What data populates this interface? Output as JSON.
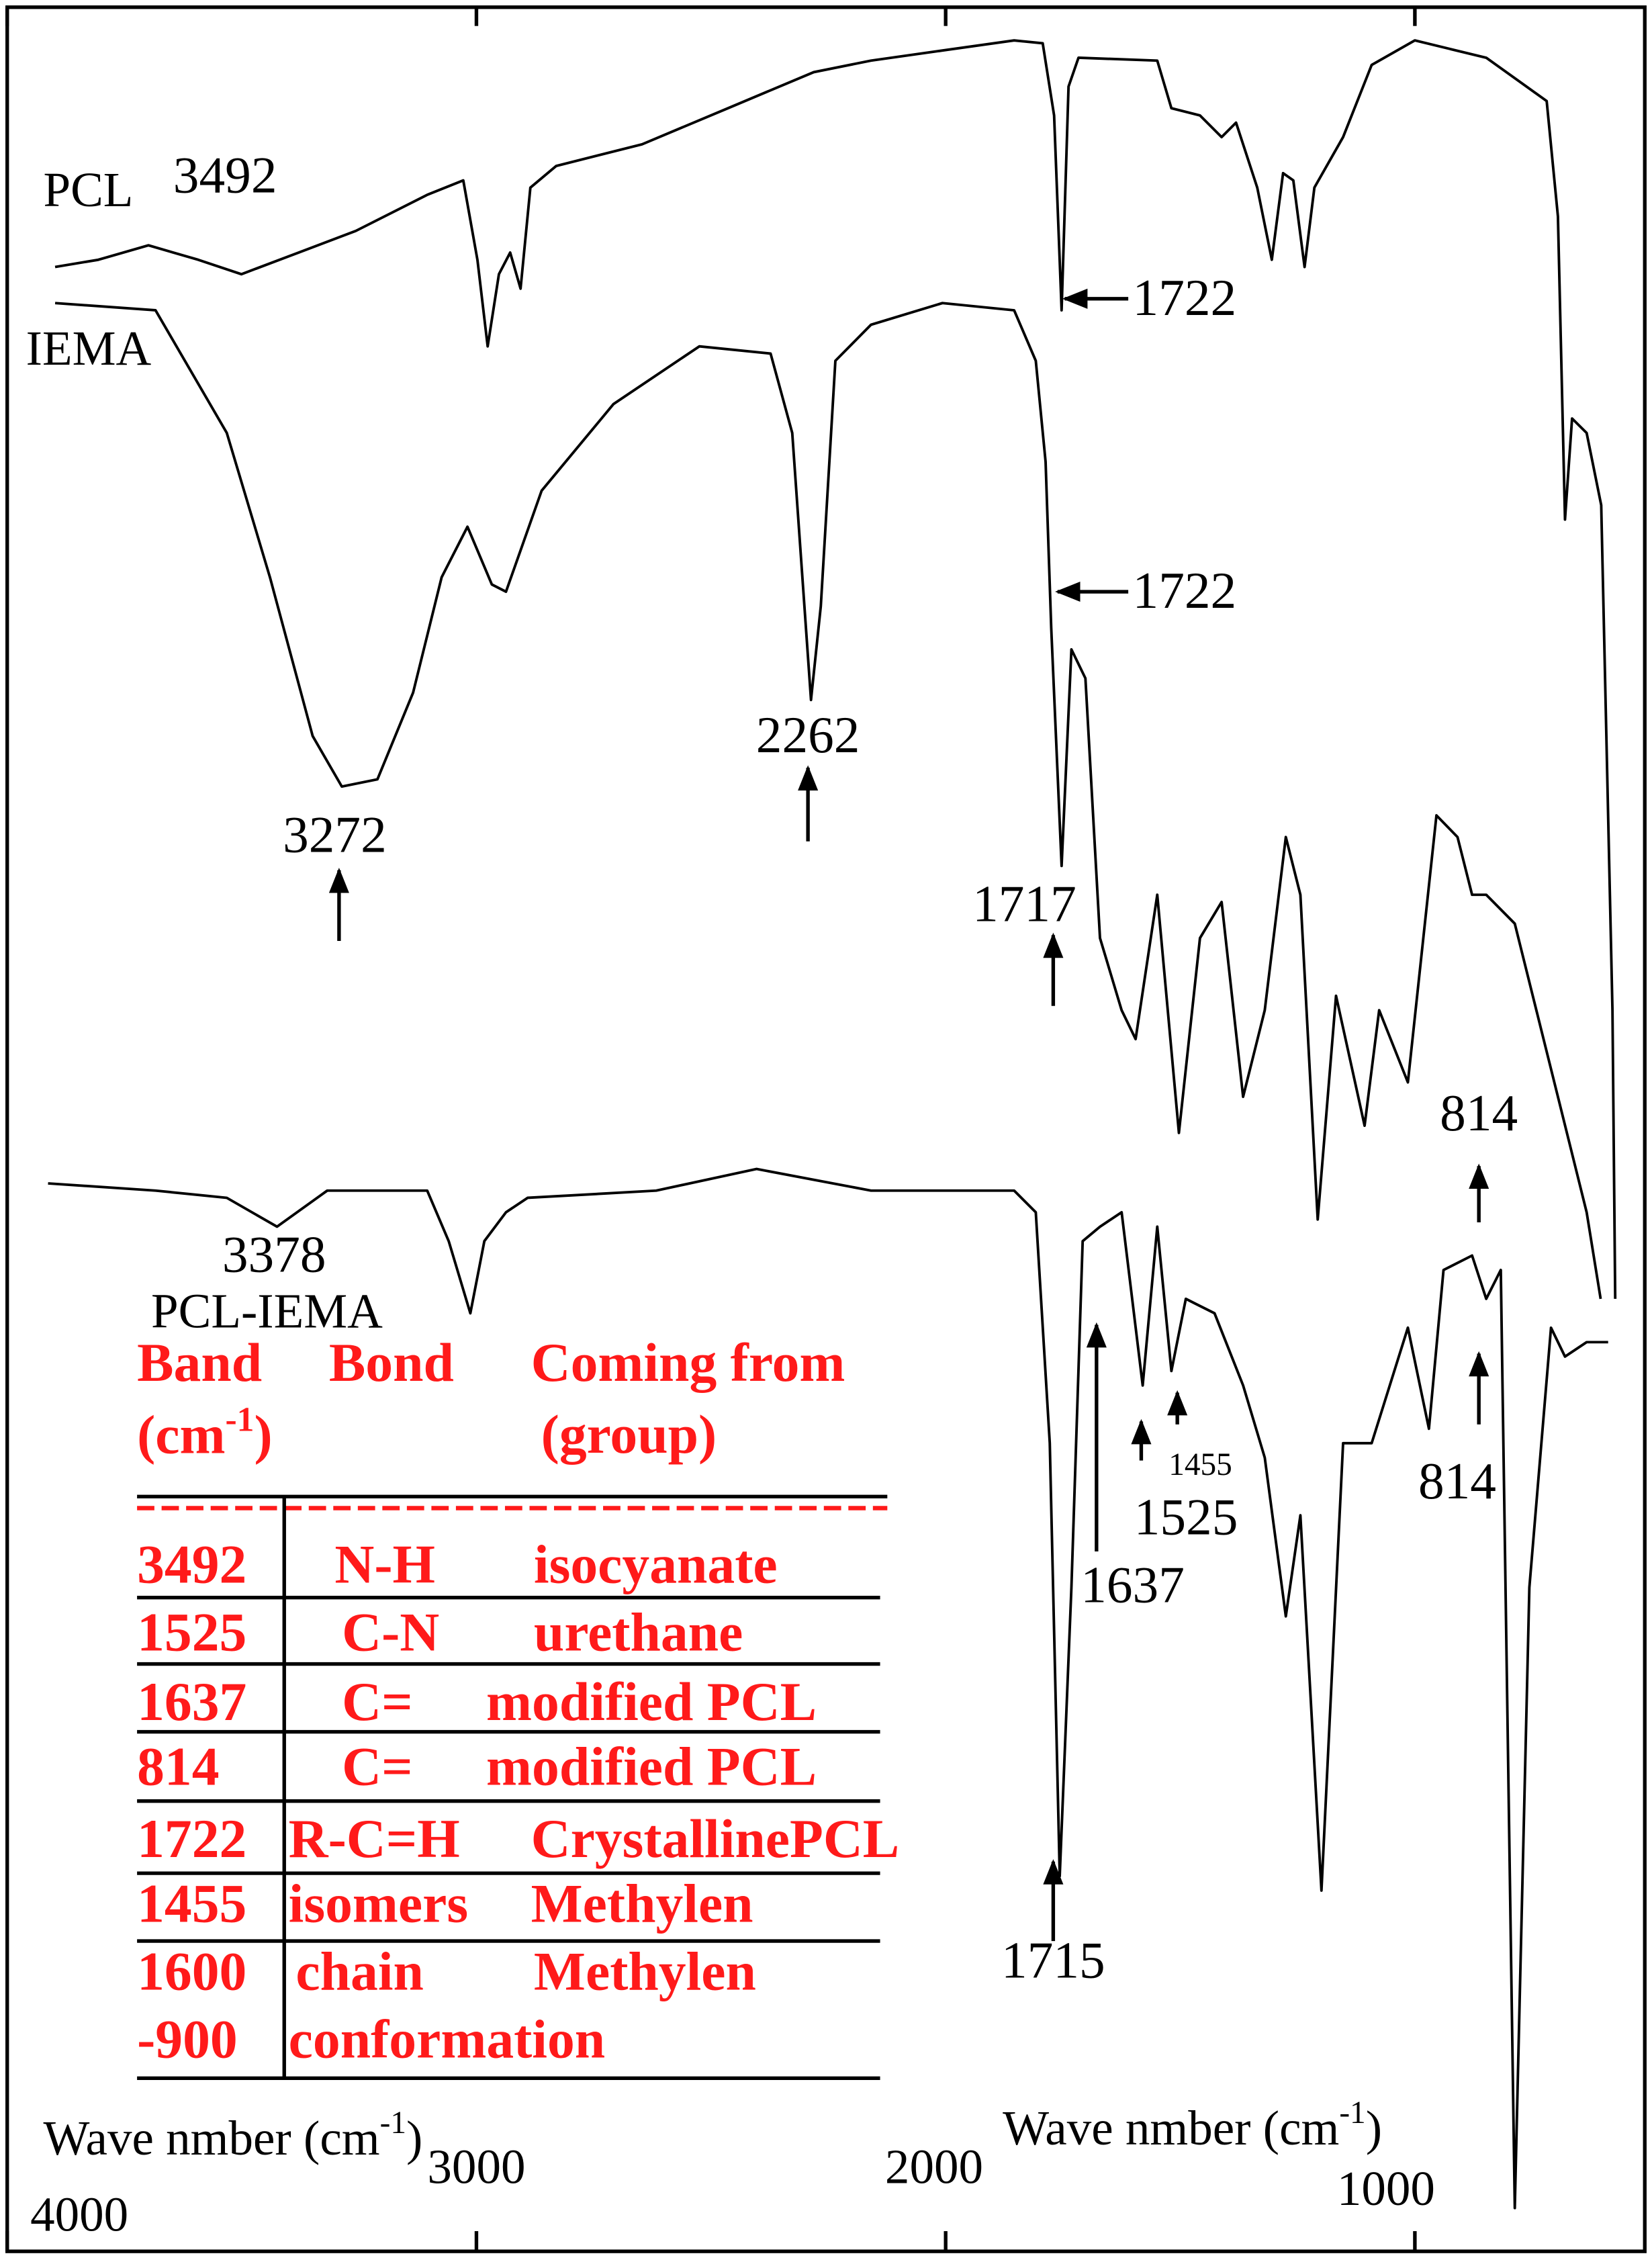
{
  "chart_data": {
    "type": "line",
    "series": [
      {
        "name": "PCL",
        "color": "#000000",
        "x": [
          3898,
          3806,
          3699,
          3593,
          3501,
          3379,
          3257,
          3105,
          3028,
          2998,
          2976,
          2952,
          2928,
          2906,
          2885,
          2830,
          2647,
          2464,
          2281,
          2159,
          2007,
          1854,
          1793,
          1769,
          1753,
          1738,
          1717,
          1549,
          1519,
          1458,
          1412,
          1381,
          1336,
          1305,
          1281,
          1259,
          1235,
          1214,
          1153,
          1092,
          1000,
          848,
          719,
          695,
          680,
          665,
          634,
          603,
          579,
          573
        ],
        "values": [
          137.5,
          138,
          139,
          138,
          137,
          138.5,
          140,
          142.5,
          143.5,
          138,
          132,
          137,
          138.5,
          136,
          143,
          144.5,
          146,
          148.5,
          151,
          151.8,
          152.5,
          153.2,
          153,
          148,
          134.5,
          150,
          152,
          151.8,
          148.5,
          148,
          146.5,
          147.5,
          143,
          138,
          144,
          143.5,
          137.5,
          143,
          146.5,
          151.5,
          153.2,
          152,
          149,
          141,
          120,
          127,
          126,
          121,
          86,
          66
        ]
      },
      {
        "name": "IEMA",
        "color": "#000000",
        "x": [
          3898,
          3684,
          3532,
          3440,
          3349,
          3287,
          3211,
          3135,
          3074,
          3019,
          2967,
          2937,
          2861,
          2708,
          2525,
          2373,
          2327,
          2287,
          2266,
          2235,
          2159,
          2007,
          1854,
          1808,
          1787,
          1775,
          1753,
          1732,
          1702,
          1671,
          1625,
          1595,
          1549,
          1503,
          1458,
          1412,
          1366,
          1320,
          1275,
          1244,
          1207,
          1168,
          1107,
          1076,
          1015,
          954,
          909,
          878,
          848,
          787,
          695,
          634,
          604
        ],
        "values": [
          135,
          134.5,
          126,
          116,
          105,
          101.5,
          102,
          108,
          116,
          119.5,
          115.5,
          115,
          122,
          128,
          132,
          131.5,
          126,
          107.5,
          114,
          131,
          133.5,
          135,
          134.5,
          131,
          124,
          112.5,
          96,
          111,
          109,
          91,
          86,
          84,
          94,
          77.5,
          91,
          93.5,
          80,
          86,
          98,
          94,
          71.5,
          87,
          78,
          86,
          81,
          99.5,
          98,
          94,
          94,
          92,
          80,
          72,
          66
        ]
      },
      {
        "name": "PCL-IEMA",
        "color": "#000000",
        "x": [
          3913,
          3684,
          3532,
          3425,
          3318,
          3105,
          3059,
          3013,
          2983,
          2937,
          2891,
          2617,
          2403,
          2159,
          1854,
          1808,
          1778,
          1757,
          1732,
          1708,
          1671,
          1625,
          1580,
          1549,
          1519,
          1488,
          1427,
          1366,
          1320,
          1275,
          1244,
          1199,
          1153,
          1092,
          1015,
          970,
          939,
          878,
          848,
          817,
          787,
          756,
          710,
          680,
          634,
          588
        ],
        "values": [
          74,
          73.5,
          73,
          71,
          73.5,
          73.5,
          70,
          65,
          70,
          72,
          73,
          73.5,
          75,
          73.5,
          73.5,
          72,
          56,
          26,
          46,
          70,
          71,
          72,
          60,
          71,
          61,
          66,
          65,
          60,
          55,
          44,
          51,
          25,
          56,
          56,
          64,
          57,
          68,
          69,
          66,
          68,
          3,
          46,
          64,
          62,
          63,
          63
        ]
      }
    ],
    "xlim": [
      4000,
      510
    ],
    "xticks": [
      4000,
      3000,
      2000,
      1000
    ],
    "ylim": [
      0,
      156
    ],
    "annotations": [
      "3492",
      "1722",
      "1722",
      "3272",
      "2262",
      "1717",
      "814",
      "3378",
      "1637",
      "1525",
      "1455",
      "814",
      "1715"
    ],
    "x_labels": [
      {
        "text": "Wave nmber (cm",
        "sup": "-1",
        "close": ")"
      },
      {
        "text": "Wave nmber (cm",
        "sup": "-1",
        "close": ")"
      }
    ]
  },
  "table": {
    "header": {
      "band": "Band",
      "band_unit": "(cm",
      "band_sup": "-1",
      "band_close": ")",
      "bond": "Bond",
      "source": "Coming from",
      "source_group": "(group)"
    },
    "rows": [
      [
        "3492",
        "N-H",
        "isocyanate"
      ],
      [
        "1525",
        "C-N",
        "urethane"
      ],
      [
        "1637",
        "C=",
        "modified PCL"
      ],
      [
        "814",
        "C=",
        "modified PCL"
      ],
      [
        "1722",
        "R-C=H",
        "CrystallinePCL"
      ],
      [
        "1455",
        "isomers",
        "Methylen"
      ],
      [
        "1600",
        "chain",
        "Methylen"
      ],
      [
        "-900",
        "conformation"
      ]
    ]
  }
}
